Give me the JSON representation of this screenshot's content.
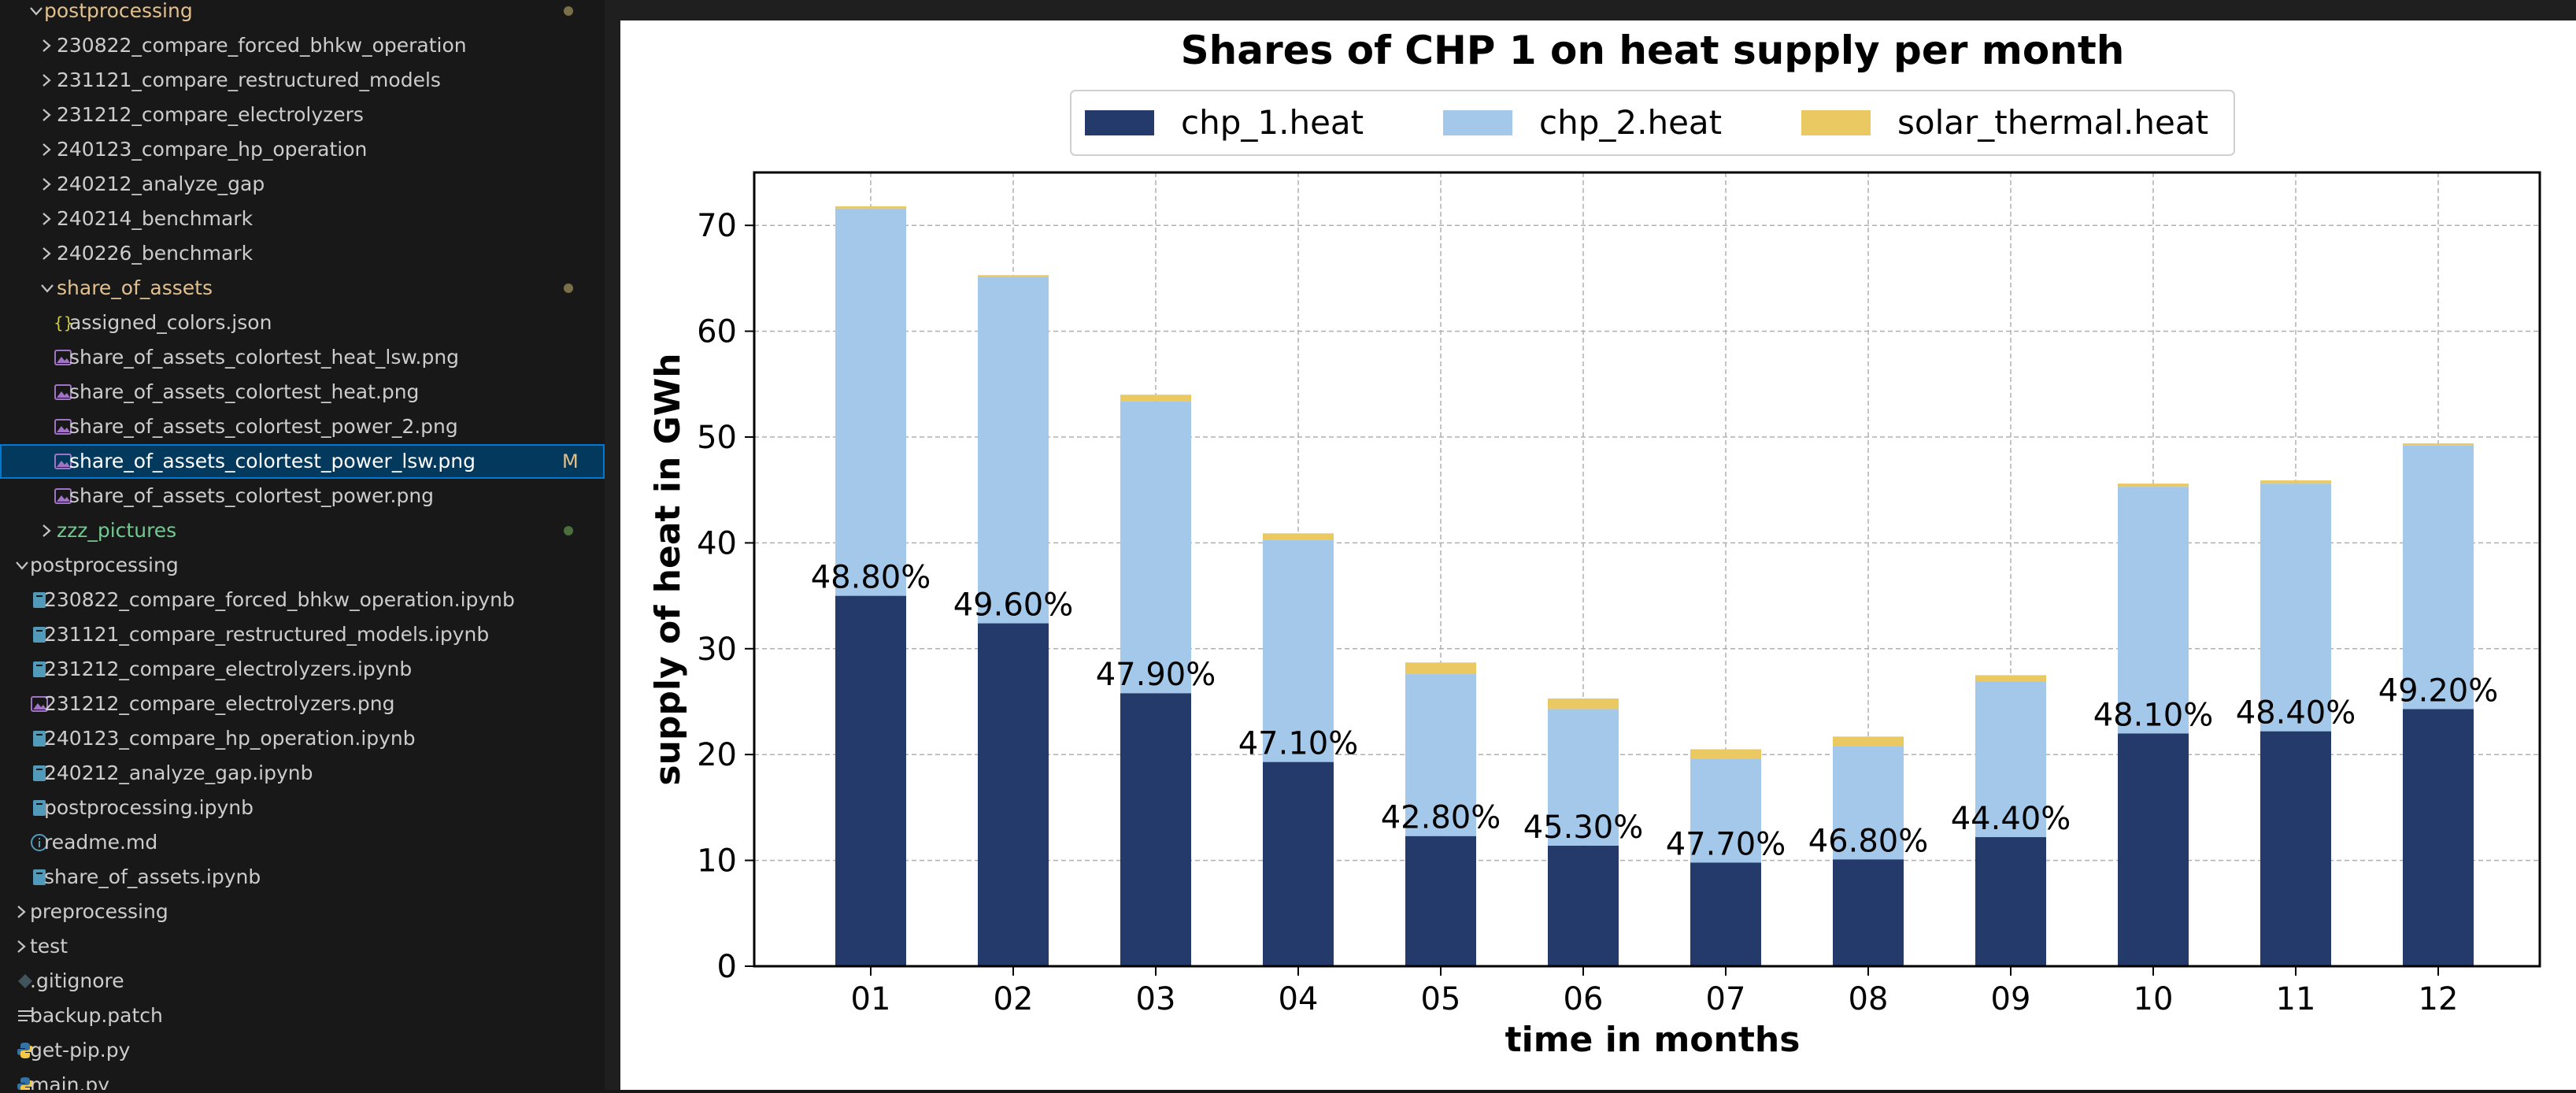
{
  "explorer": {
    "rows": [
      {
        "label": "postprocessing",
        "indent": 1,
        "kind": "folder",
        "open": true,
        "color": "#e2c08d",
        "dot": "mod"
      },
      {
        "label": "230822_compare_forced_bhkw_operation",
        "indent": 2,
        "kind": "folder",
        "open": false,
        "color": "#cccccc"
      },
      {
        "label": "231121_compare_restructured_models",
        "indent": 2,
        "kind": "folder",
        "open": false,
        "color": "#cccccc"
      },
      {
        "label": "231212_compare_electrolyzers",
        "indent": 2,
        "kind": "folder",
        "open": false,
        "color": "#cccccc"
      },
      {
        "label": "240123_compare_hp_operation",
        "indent": 2,
        "kind": "folder",
        "open": false,
        "color": "#cccccc"
      },
      {
        "label": "240212_analyze_gap",
        "indent": 2,
        "kind": "folder",
        "open": false,
        "color": "#cccccc"
      },
      {
        "label": "240214_benchmark",
        "indent": 2,
        "kind": "folder",
        "open": false,
        "color": "#cccccc"
      },
      {
        "label": "240226_benchmark",
        "indent": 2,
        "kind": "folder",
        "open": false,
        "color": "#cccccc"
      },
      {
        "label": "share_of_assets",
        "indent": 2,
        "kind": "folder",
        "open": true,
        "color": "#e2c08d",
        "dot": "mod"
      },
      {
        "label": "assigned_colors.json",
        "indent": 3,
        "kind": "json",
        "color": "#cccccc"
      },
      {
        "label": "share_of_assets_colortest_heat_lsw.png",
        "indent": 3,
        "kind": "image",
        "color": "#cccccc"
      },
      {
        "label": "share_of_assets_colortest_heat.png",
        "indent": 3,
        "kind": "image",
        "color": "#cccccc"
      },
      {
        "label": "share_of_assets_colortest_power_2.png",
        "indent": 3,
        "kind": "image",
        "color": "#cccccc"
      },
      {
        "label": "share_of_assets_colortest_power_lsw.png",
        "indent": 3,
        "kind": "image",
        "color": "#ffffff",
        "selected": true,
        "badge": "M"
      },
      {
        "label": "share_of_assets_colortest_power.png",
        "indent": 3,
        "kind": "image",
        "color": "#cccccc"
      },
      {
        "label": "zzz_pictures",
        "indent": 2,
        "kind": "folder",
        "open": false,
        "color": "#73c991",
        "dot": "new"
      },
      {
        "label": "postprocessing",
        "indent": 0,
        "kind": "folder",
        "open": true,
        "color": "#cccccc"
      },
      {
        "label": "230822_compare_forced_bhkw_operation.ipynb",
        "indent": 1,
        "kind": "notebook",
        "color": "#cccccc"
      },
      {
        "label": "231121_compare_restructured_models.ipynb",
        "indent": 1,
        "kind": "notebook",
        "color": "#cccccc"
      },
      {
        "label": "231212_compare_electrolyzers.ipynb",
        "indent": 1,
        "kind": "notebook",
        "color": "#cccccc"
      },
      {
        "label": "231212_compare_electrolyzers.png",
        "indent": 1,
        "kind": "image",
        "color": "#cccccc"
      },
      {
        "label": "240123_compare_hp_operation.ipynb",
        "indent": 1,
        "kind": "notebook",
        "color": "#cccccc"
      },
      {
        "label": "240212_analyze_gap.ipynb",
        "indent": 1,
        "kind": "notebook",
        "color": "#cccccc"
      },
      {
        "label": "postprocessing.ipynb",
        "indent": 1,
        "kind": "notebook",
        "color": "#cccccc"
      },
      {
        "label": "readme.md",
        "indent": 1,
        "kind": "info",
        "color": "#cccccc"
      },
      {
        "label": "share_of_assets.ipynb",
        "indent": 1,
        "kind": "notebook",
        "color": "#cccccc"
      },
      {
        "label": "preprocessing",
        "indent": 0,
        "kind": "folder",
        "open": false,
        "color": "#cccccc"
      },
      {
        "label": "test",
        "indent": 0,
        "kind": "folder",
        "open": false,
        "color": "#cccccc"
      },
      {
        "label": ".gitignore",
        "indent": 0,
        "kind": "gitignore",
        "color": "#cccccc"
      },
      {
        "label": "backup.patch",
        "indent": 0,
        "kind": "text",
        "color": "#cccccc"
      },
      {
        "label": "get-pip.py",
        "indent": 0,
        "kind": "python",
        "color": "#cccccc"
      },
      {
        "label": "main.py",
        "indent": 0,
        "kind": "python",
        "color": "#cccccc"
      }
    ]
  },
  "chart_data": {
    "type": "bar",
    "stacked": true,
    "title": "Shares of CHP 1 on heat supply per month",
    "xlabel": "time in months",
    "ylabel": "supply of heat in GWh",
    "ylim": [
      0,
      75
    ],
    "yticks": [
      0,
      10,
      20,
      30,
      40,
      50,
      60,
      70
    ],
    "grid": true,
    "legend_position": "top-center",
    "categories": [
      "01",
      "02",
      "03",
      "04",
      "05",
      "06",
      "07",
      "08",
      "09",
      "10",
      "11",
      "12"
    ],
    "series": [
      {
        "name": "chp_1.heat",
        "color": "#233a6a",
        "values": [
          35.0,
          32.4,
          25.8,
          19.3,
          12.3,
          11.4,
          9.8,
          10.1,
          12.2,
          22.0,
          22.2,
          24.3
        ]
      },
      {
        "name": "chp_2.heat",
        "color": "#a3c8ea",
        "values": [
          36.6,
          32.7,
          27.6,
          21.0,
          15.3,
          12.9,
          9.8,
          10.7,
          14.7,
          23.3,
          23.4,
          24.9
        ]
      },
      {
        "name": "solar_thermal.heat",
        "color": "#eac862",
        "values": [
          0.2,
          0.2,
          0.6,
          0.6,
          1.1,
          1.0,
          0.9,
          0.9,
          0.6,
          0.3,
          0.3,
          0.2
        ]
      }
    ],
    "share_labels": [
      "48.80%",
      "49.60%",
      "47.90%",
      "47.10%",
      "42.80%",
      "45.30%",
      "47.70%",
      "46.80%",
      "44.40%",
      "48.10%",
      "48.40%",
      "49.20%"
    ]
  }
}
